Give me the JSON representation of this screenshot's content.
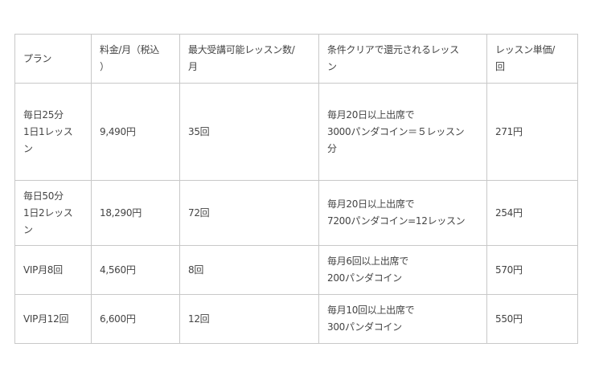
{
  "table": {
    "header": [
      [
        "プラン"
      ],
      [
        "料金/月（税込",
        "）"
      ],
      [
        "最大受講可能レッスン数/",
        "月"
      ],
      [
        "条件クリアで還元されるレッス",
        "ン"
      ],
      [
        "レッスン単価/",
        "回"
      ]
    ],
    "rows": [
      [
        [
          "毎日25分",
          "1日1レッス",
          "ン"
        ],
        [
          "9,490円"
        ],
        [
          "35回"
        ],
        [
          "毎月20日以上出席で",
          "3000パンダコイン＝５レッスン",
          "分"
        ],
        [
          "271円"
        ]
      ],
      [
        [
          "毎日50分",
          "1日2レッス",
          "ン"
        ],
        [
          "18,290円"
        ],
        [
          "72回"
        ],
        [
          "毎月20日以上出席で",
          "7200パンダコイン=12レッスン"
        ],
        [
          "254円"
        ]
      ],
      [
        [
          "VIP月8回"
        ],
        [
          "4,560円"
        ],
        [
          "8回"
        ],
        [
          "毎月6回以上出席で",
          "200パンダコイン"
        ],
        [
          "570円"
        ]
      ],
      [
        [
          "VIP月12回"
        ],
        [
          "6,600円"
        ],
        [
          "12回"
        ],
        [
          "毎月10回以上出席で",
          "300パンダコイン"
        ],
        [
          "550円"
        ]
      ]
    ]
  }
}
